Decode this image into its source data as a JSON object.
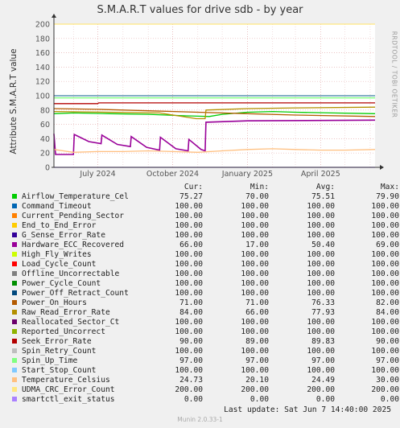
{
  "title": "S.M.A.R.T values for drive sdb - by year",
  "vendor": "RRDTOOL / TOBI OETIKER",
  "footer": "Munin 2.0.33-1",
  "last_update": "Last update:  Sat Jun  7 14:40:00 2025",
  "legend_headers": [
    "Cur:",
    "Min:",
    "Avg:",
    "Max:"
  ],
  "chart_data": {
    "type": "line",
    "title": "S.M.A.R.T values for drive sdb - by year",
    "ylabel": "Attribute S.M.A.R.T value",
    "ylim": [
      0,
      200
    ],
    "yticks": [
      0,
      20,
      40,
      60,
      80,
      100,
      120,
      140,
      160,
      180,
      200
    ],
    "xlim": [
      "2024-05-08",
      "2025-06-07"
    ],
    "xticks": [
      {
        "date": "2024-07-01",
        "label": "July 2024"
      },
      {
        "date": "2024-10-01",
        "label": "October 2024"
      },
      {
        "date": "2025-01-01",
        "label": "January 2025"
      },
      {
        "date": "2025-04-01",
        "label": "April 2025"
      }
    ],
    "grid": true,
    "series": [
      {
        "name": "Airflow_Temperature_Cel",
        "color": "#00cc00",
        "cur": "75.27",
        "min": "70.00",
        "avg": "75.51",
        "max": "79.90",
        "points": [
          [
            "2024-05-08",
            75
          ],
          [
            "2024-06-01",
            76
          ],
          [
            "2024-07-15",
            75
          ],
          [
            "2024-09-01",
            74
          ],
          [
            "2024-10-15",
            72
          ],
          [
            "2024-11-15",
            71
          ],
          [
            "2024-12-01",
            74
          ],
          [
            "2025-01-01",
            77
          ],
          [
            "2025-02-01",
            78
          ],
          [
            "2025-03-01",
            77
          ],
          [
            "2025-04-15",
            76
          ],
          [
            "2025-06-07",
            75
          ]
        ]
      },
      {
        "name": "Command_Timeout",
        "color": "#0066b3",
        "cur": "100.00",
        "min": "100.00",
        "avg": "100.00",
        "max": "100.00",
        "points": [
          [
            "2024-05-08",
            100
          ],
          [
            "2025-06-07",
            100
          ]
        ]
      },
      {
        "name": "Current_Pending_Sector",
        "color": "#ff8000",
        "cur": "100.00",
        "min": "100.00",
        "avg": "100.00",
        "max": "100.00",
        "points": [
          [
            "2024-05-08",
            100
          ],
          [
            "2025-06-07",
            100
          ]
        ]
      },
      {
        "name": "End_to_End_Error",
        "color": "#ffcc00",
        "cur": "100.00",
        "min": "100.00",
        "avg": "100.00",
        "max": "100.00",
        "points": [
          [
            "2024-05-08",
            100
          ],
          [
            "2025-06-07",
            100
          ]
        ]
      },
      {
        "name": "G_Sense_Error_Rate",
        "color": "#330099",
        "cur": "100.00",
        "min": "100.00",
        "avg": "100.00",
        "max": "100.00",
        "points": [
          [
            "2024-05-08",
            100
          ],
          [
            "2025-06-07",
            100
          ]
        ]
      },
      {
        "name": "Hardware_ECC_Recovered",
        "color": "#990099",
        "cur": "66.00",
        "min": "17.00",
        "avg": "50.40",
        "max": "69.00",
        "points": [
          [
            "2024-05-08",
            47
          ],
          [
            "2024-05-10",
            18
          ],
          [
            "2024-06-01",
            18
          ],
          [
            "2024-06-02",
            46
          ],
          [
            "2024-06-20",
            36
          ],
          [
            "2024-07-05",
            33
          ],
          [
            "2024-07-06",
            45
          ],
          [
            "2024-07-25",
            32
          ],
          [
            "2024-08-10",
            29
          ],
          [
            "2024-08-11",
            43
          ],
          [
            "2024-08-30",
            28
          ],
          [
            "2024-09-15",
            24
          ],
          [
            "2024-09-16",
            42
          ],
          [
            "2024-10-05",
            26
          ],
          [
            "2024-10-20",
            23
          ],
          [
            "2024-10-21",
            39
          ],
          [
            "2024-11-05",
            25
          ],
          [
            "2024-11-10",
            23
          ],
          [
            "2024-11-11",
            63
          ],
          [
            "2025-01-01",
            65
          ],
          [
            "2025-06-07",
            66
          ]
        ]
      },
      {
        "name": "High_Fly_Writes",
        "color": "#ccff00",
        "cur": "100.00",
        "min": "100.00",
        "avg": "100.00",
        "max": "100.00",
        "points": [
          [
            "2024-05-08",
            100
          ],
          [
            "2025-06-07",
            100
          ]
        ]
      },
      {
        "name": "Load_Cycle_Count",
        "color": "#ff0000",
        "cur": "100.00",
        "min": "100.00",
        "avg": "100.00",
        "max": "100.00",
        "points": [
          [
            "2024-05-08",
            100
          ],
          [
            "2025-06-07",
            100
          ]
        ]
      },
      {
        "name": "Offline_Uncorrectable",
        "color": "#808080",
        "cur": "100.00",
        "min": "100.00",
        "avg": "100.00",
        "max": "100.00",
        "points": [
          [
            "2024-05-08",
            100
          ],
          [
            "2025-06-07",
            100
          ]
        ]
      },
      {
        "name": "Power_Cycle_Count",
        "color": "#008f00",
        "cur": "100.00",
        "min": "100.00",
        "avg": "100.00",
        "max": "100.00",
        "points": [
          [
            "2024-05-08",
            100
          ],
          [
            "2025-06-07",
            100
          ]
        ]
      },
      {
        "name": "Power_Off_Retract_Count",
        "color": "#00487d",
        "cur": "100.00",
        "min": "100.00",
        "avg": "100.00",
        "max": "100.00",
        "points": [
          [
            "2024-05-08",
            100
          ],
          [
            "2025-06-07",
            100
          ]
        ]
      },
      {
        "name": "Power_On_Hours",
        "color": "#b35a00",
        "cur": "71.00",
        "min": "71.00",
        "avg": "76.33",
        "max": "82.00",
        "points": [
          [
            "2024-05-08",
            82
          ],
          [
            "2024-07-01",
            81
          ],
          [
            "2024-09-01",
            79
          ],
          [
            "2024-11-01",
            77
          ],
          [
            "2025-01-01",
            75
          ],
          [
            "2025-03-01",
            73
          ],
          [
            "2025-06-07",
            71
          ]
        ]
      },
      {
        "name": "Raw_Read_Error_Rate",
        "color": "#b38f00",
        "cur": "84.00",
        "min": "66.00",
        "avg": "77.93",
        "max": "84.00",
        "points": [
          [
            "2024-05-08",
            78
          ],
          [
            "2024-07-15",
            77
          ],
          [
            "2024-09-15",
            76
          ],
          [
            "2024-10-30",
            68
          ],
          [
            "2024-11-10",
            68
          ],
          [
            "2024-11-11",
            80
          ],
          [
            "2025-01-01",
            82
          ],
          [
            "2025-03-01",
            83
          ],
          [
            "2025-06-07",
            84
          ]
        ]
      },
      {
        "name": "Reallocated_Sector_Ct",
        "color": "#6b006b",
        "cur": "100.00",
        "min": "100.00",
        "avg": "100.00",
        "max": "100.00",
        "points": [
          [
            "2024-05-08",
            100
          ],
          [
            "2025-06-07",
            100
          ]
        ]
      },
      {
        "name": "Reported_Uncorrect",
        "color": "#8fb300",
        "cur": "100.00",
        "min": "100.00",
        "avg": "100.00",
        "max": "100.00",
        "points": [
          [
            "2024-05-08",
            100
          ],
          [
            "2025-06-07",
            100
          ]
        ]
      },
      {
        "name": "Seek_Error_Rate",
        "color": "#b30000",
        "cur": "90.00",
        "min": "89.00",
        "avg": "89.83",
        "max": "90.00",
        "points": [
          [
            "2024-05-08",
            89
          ],
          [
            "2024-07-01",
            89
          ],
          [
            "2024-07-02",
            90
          ],
          [
            "2025-06-07",
            90
          ]
        ]
      },
      {
        "name": "Spin_Retry_Count",
        "color": "#bebebe",
        "cur": "100.00",
        "min": "100.00",
        "avg": "100.00",
        "max": "100.00",
        "points": [
          [
            "2024-05-08",
            100
          ],
          [
            "2025-06-07",
            100
          ]
        ]
      },
      {
        "name": "Spin_Up_Time",
        "color": "#80ff80",
        "cur": "97.00",
        "min": "97.00",
        "avg": "97.00",
        "max": "97.00",
        "points": [
          [
            "2024-05-08",
            97
          ],
          [
            "2025-06-07",
            97
          ]
        ]
      },
      {
        "name": "Start_Stop_Count",
        "color": "#80c9ff",
        "cur": "100.00",
        "min": "100.00",
        "avg": "100.00",
        "max": "100.00",
        "points": [
          [
            "2024-05-08",
            100
          ],
          [
            "2025-06-07",
            100
          ]
        ]
      },
      {
        "name": "Temperature_Celsius",
        "color": "#ffc080",
        "cur": "24.73",
        "min": "20.10",
        "avg": "24.49",
        "max": "30.00",
        "points": [
          [
            "2024-05-08",
            25
          ],
          [
            "2024-06-01",
            21
          ],
          [
            "2024-07-01",
            22
          ],
          [
            "2024-08-01",
            22
          ],
          [
            "2024-09-01",
            23
          ],
          [
            "2024-10-01",
            22
          ],
          [
            "2024-11-01",
            21
          ],
          [
            "2024-12-01",
            23
          ],
          [
            "2025-01-01",
            25
          ],
          [
            "2025-02-01",
            26
          ],
          [
            "2025-03-01",
            25
          ],
          [
            "2025-04-01",
            24
          ],
          [
            "2025-05-01",
            24
          ],
          [
            "2025-06-07",
            25
          ]
        ]
      },
      {
        "name": "UDMA_CRC_Error_Count",
        "color": "#ffe680",
        "cur": "200.00",
        "min": "200.00",
        "avg": "200.00",
        "max": "200.00",
        "points": [
          [
            "2024-05-08",
            200
          ],
          [
            "2025-06-07",
            200
          ]
        ]
      },
      {
        "name": "smartctl_exit_status",
        "color": "#aa80ff",
        "cur": "0.00",
        "min": "0.00",
        "avg": "0.00",
        "max": "0.00",
        "points": [
          [
            "2024-05-08",
            0
          ],
          [
            "2025-06-07",
            0
          ]
        ]
      }
    ]
  }
}
